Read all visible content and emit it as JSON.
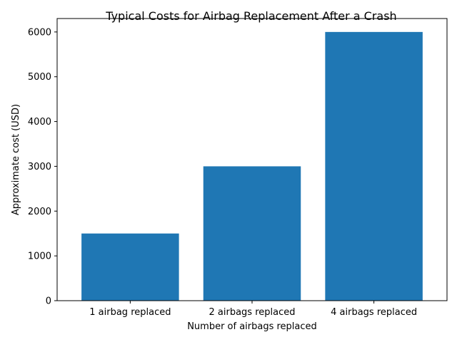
{
  "chart_data": {
    "type": "bar",
    "title": "Typical Costs for Airbag Replacement After a Crash",
    "xlabel": "Number of airbags replaced",
    "ylabel": "Approximate cost (USD)",
    "categories": [
      "1 airbag replaced",
      "2 airbags replaced",
      "4 airbags replaced"
    ],
    "values": [
      1500,
      3000,
      6000
    ],
    "ylim": [
      0,
      6300
    ],
    "yticks": [
      0,
      1000,
      2000,
      3000,
      4000,
      5000,
      6000
    ],
    "bar_color": "#1f77b4",
    "grid": false,
    "legend": "none"
  }
}
